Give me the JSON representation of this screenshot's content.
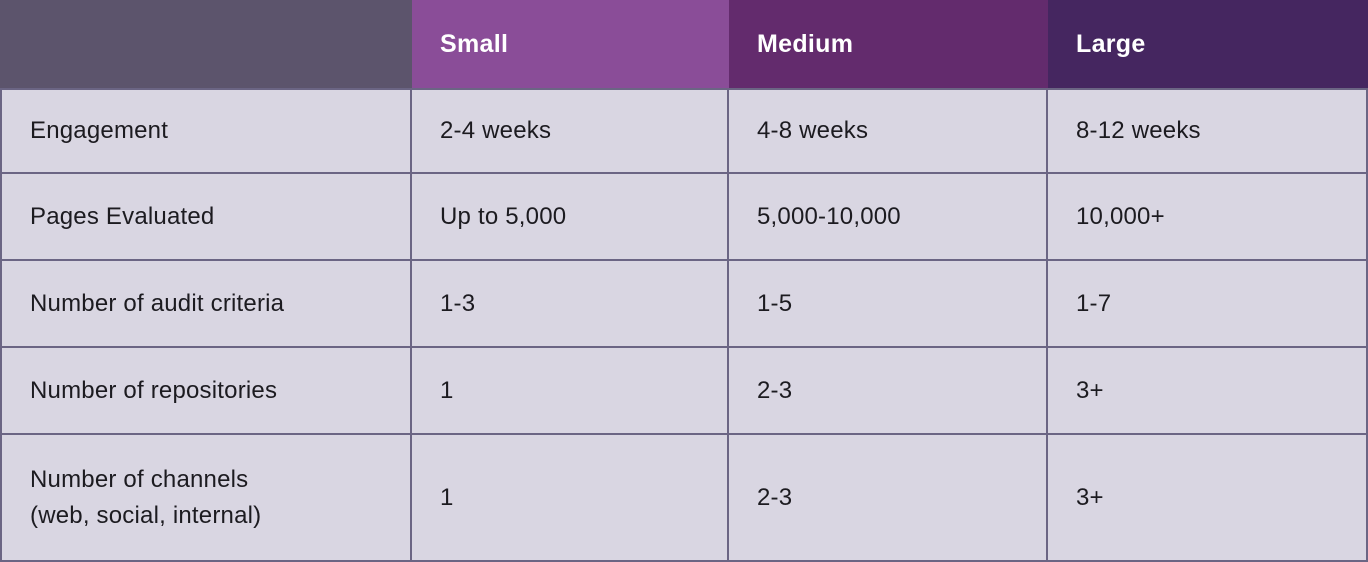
{
  "chart_data": {
    "type": "table",
    "title": "",
    "columns": [
      "",
      "Small",
      "Medium",
      "Large"
    ],
    "rows": [
      [
        "Engagement",
        "2-4 weeks",
        "4-8 weeks",
        "8-12 weeks"
      ],
      [
        "Pages Evaluated",
        "Up to 5,000",
        "5,000-10,000",
        "10,000+"
      ],
      [
        "Number of audit criteria",
        "1-3",
        "1-5",
        "1-7"
      ],
      [
        "Number of repositories",
        "1",
        "2-3",
        "3+"
      ],
      [
        "Number of channels (web, social, internal)",
        "1",
        "2-3",
        "3+"
      ]
    ]
  },
  "table": {
    "header": {
      "corner_bg": "#5c546c",
      "columns": [
        {
          "label": "Small",
          "bg": "#8a4d98"
        },
        {
          "label": "Medium",
          "bg": "#632b6d"
        },
        {
          "label": "Large",
          "bg": "#452660"
        }
      ]
    },
    "rows": [
      {
        "label": "Engagement",
        "values": [
          "2-4 weeks",
          "4-8 weeks",
          "8-12 weeks"
        ]
      },
      {
        "label": "Pages Evaluated",
        "values": [
          "Up to 5,000",
          "5,000-10,000",
          "10,000+"
        ]
      },
      {
        "label": "Number of audit criteria",
        "values": [
          "1-3",
          "1-5",
          "1-7"
        ]
      },
      {
        "label": "Number of repositories",
        "values": [
          "1",
          "2-3",
          "3+"
        ]
      },
      {
        "label": "Number of channels\n(web, social, internal)",
        "values": [
          "1",
          "2-3",
          "3+"
        ]
      }
    ],
    "colors": {
      "row_bg": "#d9d6e2",
      "border": "#6b6584",
      "text": "#1c1b20",
      "header_text": "#ffffff"
    }
  }
}
